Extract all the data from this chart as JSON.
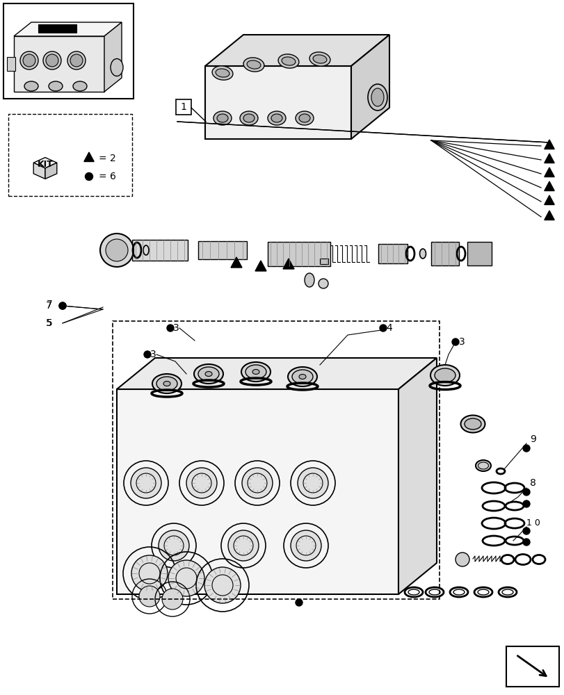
{
  "bg_color": "#ffffff",
  "line_color": "#000000",
  "kit_tri_count": 2,
  "kit_dot_count": 6
}
